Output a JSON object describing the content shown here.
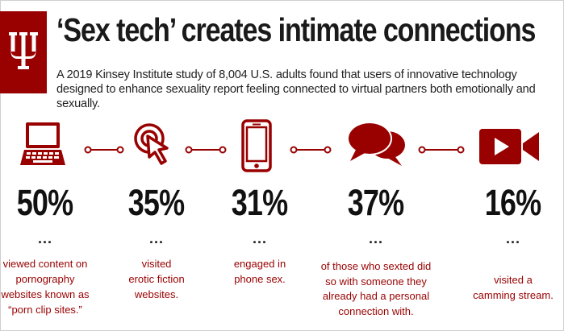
{
  "header": {
    "title": "‘Sex tech’ creates intimate connections",
    "subtitle": "A 2019 Kinsey Institute study of 8,004 U.S. adults found that users of innovative technology designed to enhance sexuality report feeling connected to virtual partners both emotionally and sexually."
  },
  "colors": {
    "accent": "#990000",
    "text": "#111111"
  },
  "stats": [
    {
      "icon": "laptop-icon",
      "value": "50%",
      "dots": "...",
      "lines": [
        "viewed content on",
        "pornography",
        "websites known as",
        "“porn clip sites.”"
      ]
    },
    {
      "icon": "cursor-click-icon",
      "value": "35%",
      "dots": "...",
      "lines": [
        "visited",
        "erotic fiction",
        "websites."
      ]
    },
    {
      "icon": "phone-icon",
      "value": "31%",
      "dots": "...",
      "lines": [
        "engaged in",
        "phone sex."
      ]
    },
    {
      "icon": "chat-bubbles-icon",
      "value": "37%",
      "dots": "...",
      "lines": [
        "of those who sexted did",
        "so with someone they",
        "already had a personal",
        "connection with."
      ]
    },
    {
      "icon": "video-camera-icon",
      "value": "16%",
      "dots": "...",
      "lines": [
        "visited a",
        "camming stream."
      ]
    }
  ]
}
